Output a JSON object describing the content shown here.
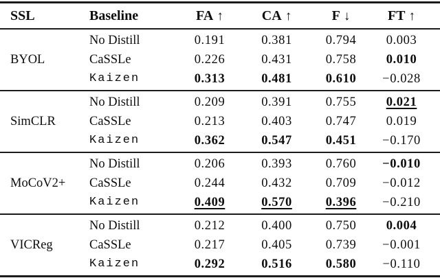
{
  "table": {
    "columns": [
      {
        "label": "SSL",
        "arrow": ""
      },
      {
        "label": "Baseline",
        "arrow": ""
      },
      {
        "label": "FA",
        "arrow": "↑"
      },
      {
        "label": "CA",
        "arrow": "↑"
      },
      {
        "label": "F",
        "arrow": "↓"
      },
      {
        "label": "FT",
        "arrow": "↑"
      }
    ],
    "groups": [
      {
        "ssl": "BYOL",
        "rows": [
          {
            "baseline": "No Distill",
            "tt": false,
            "cells": [
              {
                "v": "0.191"
              },
              {
                "v": "0.381"
              },
              {
                "v": "0.794"
              },
              {
                "v": "0.003"
              }
            ]
          },
          {
            "baseline": "CaSSLe",
            "tt": false,
            "cells": [
              {
                "v": "0.226"
              },
              {
                "v": "0.431"
              },
              {
                "v": "0.758"
              },
              {
                "v": "0.010",
                "bold": true
              }
            ]
          },
          {
            "baseline": "Kaizen",
            "tt": true,
            "cells": [
              {
                "v": "0.313",
                "bold": true
              },
              {
                "v": "0.481",
                "bold": true
              },
              {
                "v": "0.610",
                "bold": true
              },
              {
                "v": "-0.028"
              }
            ]
          }
        ]
      },
      {
        "ssl": "SimCLR",
        "rows": [
          {
            "baseline": "No Distill",
            "tt": false,
            "cells": [
              {
                "v": "0.209"
              },
              {
                "v": "0.391"
              },
              {
                "v": "0.755"
              },
              {
                "v": "0.021",
                "bold": true,
                "underline": true
              }
            ]
          },
          {
            "baseline": "CaSSLe",
            "tt": false,
            "cells": [
              {
                "v": "0.213"
              },
              {
                "v": "0.403"
              },
              {
                "v": "0.747"
              },
              {
                "v": "0.019"
              }
            ]
          },
          {
            "baseline": "Kaizen",
            "tt": true,
            "cells": [
              {
                "v": "0.362",
                "bold": true
              },
              {
                "v": "0.547",
                "bold": true
              },
              {
                "v": "0.451",
                "bold": true
              },
              {
                "v": "-0.170"
              }
            ]
          }
        ]
      },
      {
        "ssl": "MoCoV2+",
        "rows": [
          {
            "baseline": "No Distill",
            "tt": false,
            "cells": [
              {
                "v": "0.206"
              },
              {
                "v": "0.393"
              },
              {
                "v": "0.760"
              },
              {
                "v": "-0.010",
                "bold": true
              }
            ]
          },
          {
            "baseline": "CaSSLe",
            "tt": false,
            "cells": [
              {
                "v": "0.244"
              },
              {
                "v": "0.432"
              },
              {
                "v": "0.709"
              },
              {
                "v": "-0.012"
              }
            ]
          },
          {
            "baseline": "Kaizen",
            "tt": true,
            "cells": [
              {
                "v": "0.409",
                "bold": true,
                "underline": true
              },
              {
                "v": "0.570",
                "bold": true,
                "underline": true
              },
              {
                "v": "0.396",
                "bold": true,
                "underline": true
              },
              {
                "v": "-0.210"
              }
            ]
          }
        ]
      },
      {
        "ssl": "VICReg",
        "rows": [
          {
            "baseline": "No Distill",
            "tt": false,
            "cells": [
              {
                "v": "0.212"
              },
              {
                "v": "0.400"
              },
              {
                "v": "0.750"
              },
              {
                "v": "0.004",
                "bold": true
              }
            ]
          },
          {
            "baseline": "CaSSLe",
            "tt": false,
            "cells": [
              {
                "v": "0.217"
              },
              {
                "v": "0.405"
              },
              {
                "v": "0.739"
              },
              {
                "v": "-0.001"
              }
            ]
          },
          {
            "baseline": "Kaizen",
            "tt": true,
            "cells": [
              {
                "v": "0.292",
                "bold": true
              },
              {
                "v": "0.516",
                "bold": true
              },
              {
                "v": "0.580",
                "bold": true
              },
              {
                "v": "-0.110"
              }
            ]
          }
        ]
      }
    ]
  }
}
